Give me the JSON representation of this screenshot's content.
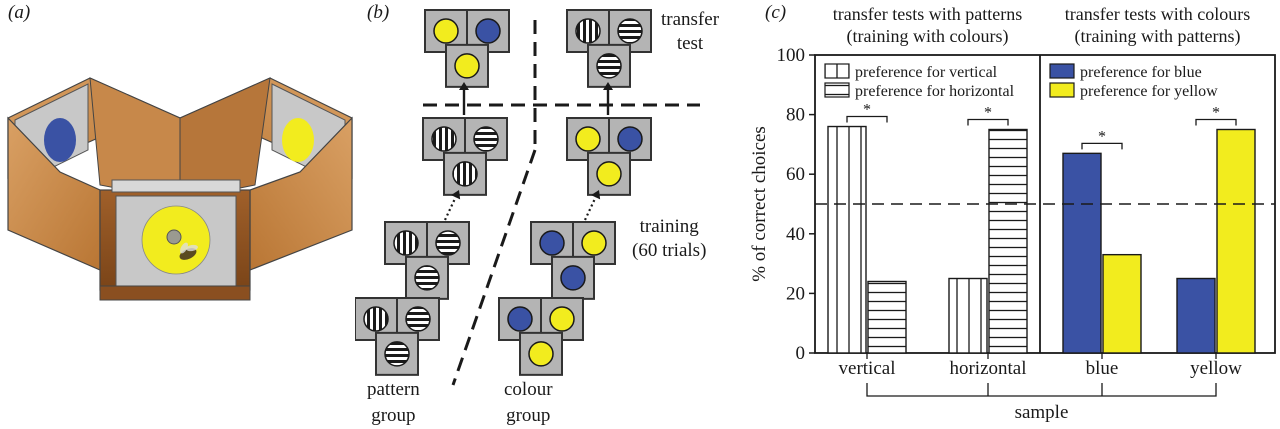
{
  "panel_labels": {
    "a": "(a)",
    "b": "(b)",
    "c": "(c)"
  },
  "panel_b": {
    "transfer_test": [
      "transfer",
      "test"
    ],
    "training": [
      "training",
      "(60 trials)"
    ],
    "pattern_group": [
      "pattern",
      "group"
    ],
    "colour_group": [
      "colour",
      "group"
    ]
  },
  "colors": {
    "blue": "#3a52a4",
    "yellow": "#f2ec1e",
    "card_grey": "#b4b4b4",
    "wood": "#c98a4c",
    "bar_outline": "#1a1a1a"
  },
  "chart_data": {
    "type": "bar",
    "section_titles": [
      [
        "transfer tests with patterns",
        "(training with colours)"
      ],
      [
        "transfer tests with colours",
        "(training with patterns)"
      ]
    ],
    "legends": [
      [
        {
          "name": "preference for vertical",
          "fill": "vertical-stripes"
        },
        {
          "name": "preference for horizontal",
          "fill": "horizontal-stripes"
        }
      ],
      [
        {
          "name": "preference for blue",
          "fill": "#3a52a4"
        },
        {
          "name": "preference for yellow",
          "fill": "#f2ec1e"
        }
      ]
    ],
    "categories": [
      "vertical",
      "horizontal",
      "blue",
      "yellow"
    ],
    "series": [
      {
        "name": "preference for vertical",
        "values": [
          76,
          25,
          null,
          null
        ]
      },
      {
        "name": "preference for horizontal",
        "values": [
          24,
          75,
          null,
          null
        ]
      },
      {
        "name": "preference for blue",
        "values": [
          null,
          null,
          67,
          25
        ]
      },
      {
        "name": "preference for yellow",
        "values": [
          null,
          null,
          33,
          75
        ]
      }
    ],
    "significance": [
      "*",
      "*",
      "*",
      "*"
    ],
    "chance_line": 50,
    "ylabel": "% of correct choices",
    "xlabel": "sample",
    "ylim": [
      0,
      100
    ],
    "yticks": [
      0,
      20,
      40,
      60,
      80,
      100
    ]
  }
}
